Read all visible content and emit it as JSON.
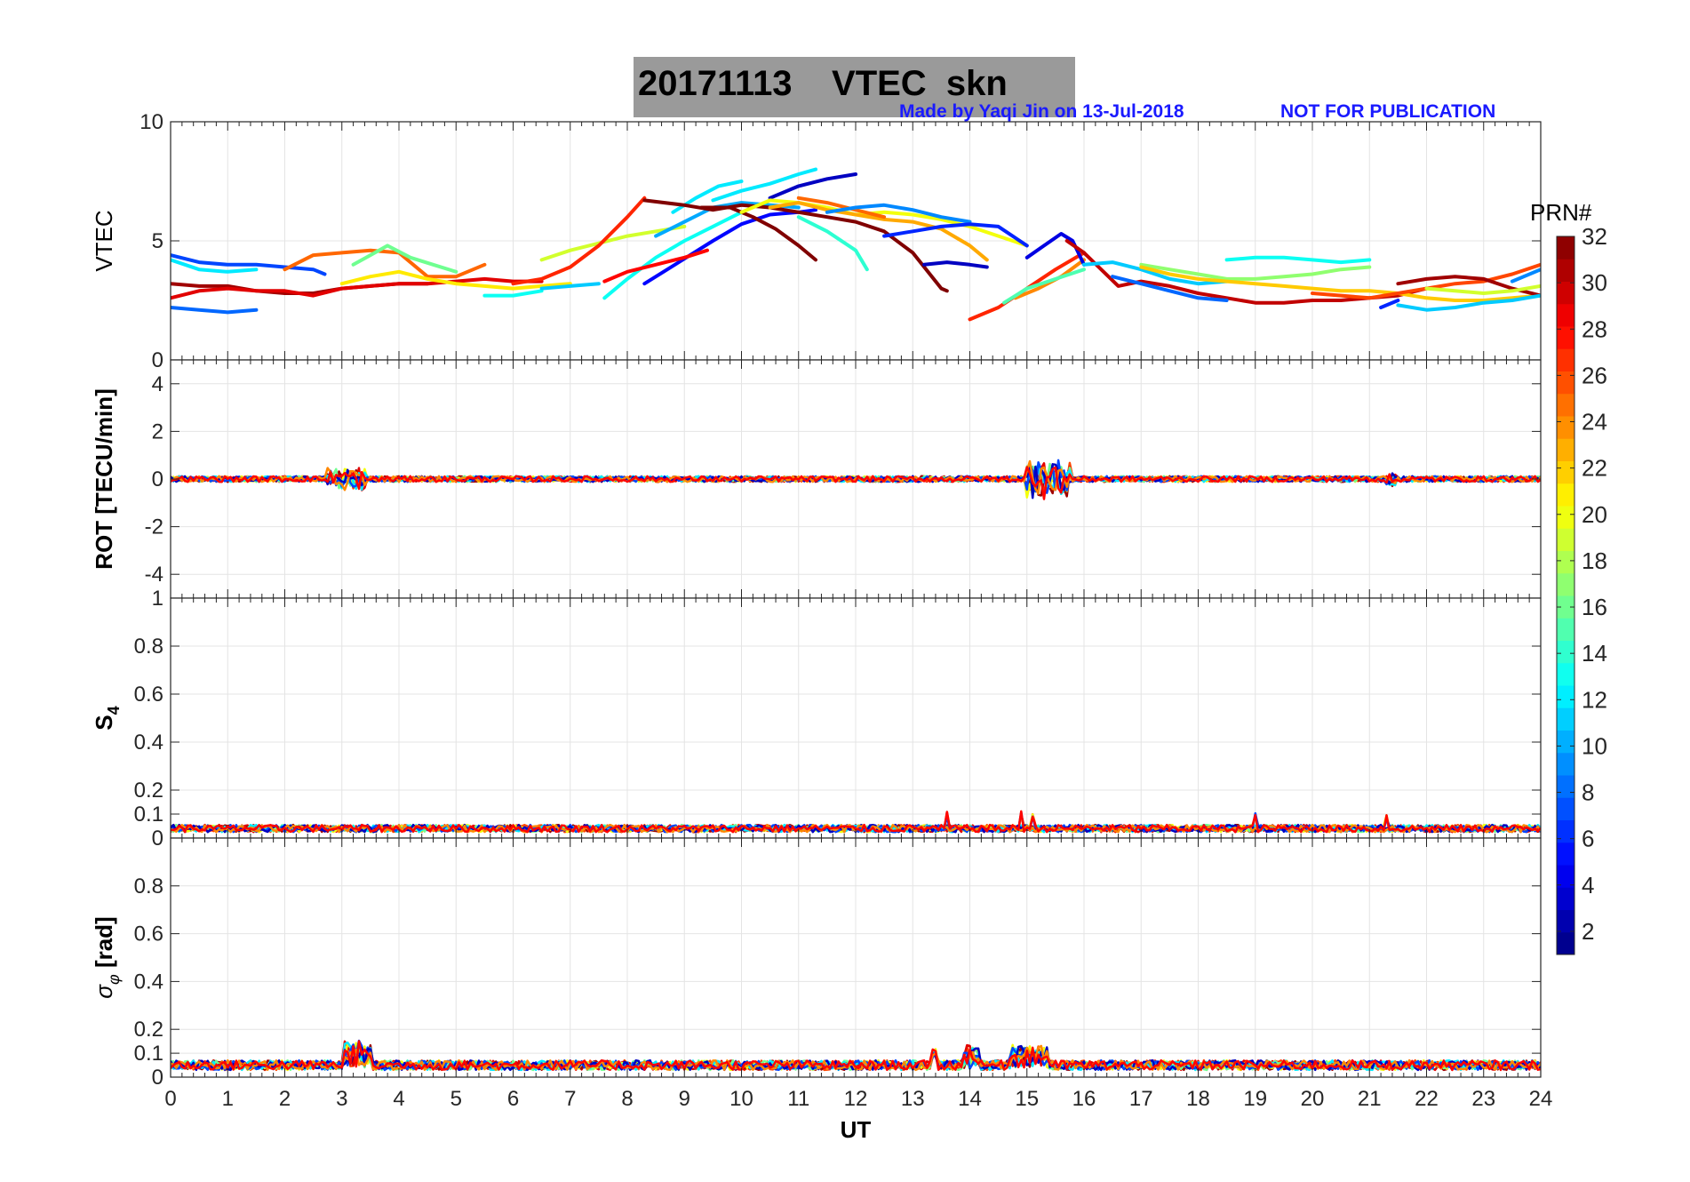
{
  "title": {
    "date": "20171113",
    "label": "VTEC  skn"
  },
  "credit": {
    "author": "Made by Yaqi Jin on 13-Jul-2018",
    "notice": "NOT FOR PUBLICATION"
  },
  "colorbar": {
    "label": "PRN#",
    "ticks": [
      2,
      4,
      6,
      8,
      10,
      12,
      14,
      16,
      18,
      20,
      22,
      24,
      26,
      28,
      30,
      32
    ],
    "range": [
      1,
      32
    ],
    "colormap": "jet"
  },
  "chart_data": [
    {
      "type": "line",
      "panel": "vtec",
      "ylabel": "VTEC",
      "ylim": [
        0,
        10
      ],
      "yticks": [
        0,
        5,
        10
      ],
      "xlim": [
        0,
        24
      ],
      "grid": true,
      "series": [
        {
          "prn": 7,
          "x": [
            0,
            0.5,
            1,
            1.5,
            2,
            2.5,
            2.7
          ],
          "y": [
            4.4,
            4.1,
            4.0,
            4.0,
            3.9,
            3.8,
            3.6
          ]
        },
        {
          "prn": 12,
          "x": [
            0,
            0.5,
            1,
            1.5
          ],
          "y": [
            4.2,
            3.8,
            3.7,
            3.8
          ]
        },
        {
          "prn": 8,
          "x": [
            0,
            0.5,
            1,
            1.5
          ],
          "y": [
            2.2,
            2.1,
            2.0,
            2.1
          ]
        },
        {
          "prn": 31,
          "x": [
            0,
            0.5,
            1,
            1.5,
            2,
            2.5,
            3,
            3.5,
            4,
            4.5
          ],
          "y": [
            3.2,
            3.1,
            3.1,
            2.9,
            2.8,
            2.8,
            3.0,
            3.1,
            3.2,
            3.2
          ]
        },
        {
          "prn": 29,
          "x": [
            0,
            0.5,
            1,
            1.5,
            2,
            2.5,
            3,
            3.5,
            4,
            4.5,
            5,
            5.5,
            6,
            6.5
          ],
          "y": [
            2.6,
            2.9,
            3.0,
            2.9,
            2.9,
            2.7,
            3.0,
            3.1,
            3.2,
            3.2,
            3.3,
            3.4,
            3.3,
            3.3
          ]
        },
        {
          "prn": 25,
          "x": [
            2,
            2.5,
            3,
            3.5,
            4,
            4.5,
            5,
            5.5
          ],
          "y": [
            3.8,
            4.4,
            4.5,
            4.6,
            4.5,
            3.5,
            3.5,
            4.0
          ]
        },
        {
          "prn": 16,
          "x": [
            3.2,
            3.5,
            3.8,
            4.2,
            4.6,
            5
          ],
          "y": [
            4.0,
            4.4,
            4.8,
            4.3,
            4.0,
            3.7
          ]
        },
        {
          "prn": 21,
          "x": [
            3,
            3.5,
            4,
            4.5,
            5,
            5.5,
            6,
            6.5,
            7
          ],
          "y": [
            3.2,
            3.5,
            3.7,
            3.4,
            3.2,
            3.1,
            3.0,
            3.1,
            3.2
          ]
        },
        {
          "prn": 19,
          "x": [
            6.5,
            7,
            7.5,
            8,
            8.5,
            9
          ],
          "y": [
            4.2,
            4.6,
            4.9,
            5.2,
            5.4,
            5.6
          ]
        },
        {
          "prn": 13,
          "x": [
            5.5,
            6,
            6.5
          ],
          "y": [
            2.7,
            2.7,
            2.9
          ]
        },
        {
          "prn": 11,
          "x": [
            6.5,
            7,
            7.5
          ],
          "y": [
            3.0,
            3.1,
            3.2
          ]
        },
        {
          "prn": 27,
          "x": [
            6,
            6.5,
            7,
            7.5,
            8,
            8.3
          ],
          "y": [
            3.2,
            3.4,
            3.9,
            4.8,
            6.0,
            6.8
          ]
        },
        {
          "prn": 13,
          "x": [
            7.6,
            8,
            8.5,
            9,
            9.5,
            10
          ],
          "y": [
            2.6,
            3.4,
            4.3,
            5.0,
            5.6,
            6.2
          ]
        },
        {
          "prn": 5,
          "x": [
            8.3,
            8.7,
            9.1,
            9.5,
            10,
            10.5,
            11,
            11.3
          ],
          "y": [
            3.2,
            3.8,
            4.4,
            5.0,
            5.7,
            6.1,
            6.2,
            6.3
          ]
        },
        {
          "prn": 10,
          "x": [
            8.5,
            9,
            9.5,
            10,
            10.5,
            11
          ],
          "y": [
            5.2,
            5.8,
            6.4,
            6.6,
            6.5,
            6.4
          ]
        },
        {
          "prn": 12,
          "x": [
            8.8,
            9.2,
            9.6,
            10
          ],
          "y": [
            6.2,
            6.8,
            7.3,
            7.5
          ]
        },
        {
          "prn": 28,
          "x": [
            7.6,
            8,
            8.5,
            9,
            9.4
          ],
          "y": [
            3.3,
            3.7,
            4.0,
            4.3,
            4.6
          ]
        },
        {
          "prn": 32,
          "x": [
            8.3,
            9,
            9.5,
            10,
            10.5,
            11,
            11.5,
            12,
            12.5,
            13,
            13.5,
            13.6
          ],
          "y": [
            6.7,
            6.5,
            6.3,
            6.5,
            6.4,
            6.2,
            6.0,
            5.8,
            5.4,
            4.5,
            3.0,
            2.9
          ]
        },
        {
          "prn": 32,
          "x": [
            9.3,
            9.8,
            10.2,
            10.6,
            11,
            11.3
          ],
          "y": [
            6.4,
            6.4,
            6.0,
            5.5,
            4.8,
            4.2
          ]
        },
        {
          "prn": 12,
          "x": [
            9.5,
            10,
            10.5,
            11,
            11.3
          ],
          "y": [
            6.7,
            7.1,
            7.4,
            7.8,
            8.0
          ]
        },
        {
          "prn": 3,
          "x": [
            10.5,
            11,
            11.5,
            12
          ],
          "y": [
            6.8,
            7.3,
            7.6,
            7.8
          ]
        },
        {
          "prn": 20,
          "x": [
            10,
            10.5,
            11,
            11.5,
            12,
            12.5,
            13,
            13.5,
            14,
            14.5,
            15
          ],
          "y": [
            6.2,
            6.7,
            6.6,
            6.4,
            6.1,
            6.2,
            6.1,
            5.9,
            5.6,
            5.2,
            4.8
          ]
        },
        {
          "prn": 23,
          "x": [
            10.5,
            11,
            11.5,
            12,
            12.5,
            13,
            13.5,
            14,
            14.3
          ],
          "y": [
            6.4,
            6.6,
            6.3,
            6.1,
            5.9,
            5.8,
            5.5,
            4.8,
            4.2
          ]
        },
        {
          "prn": 25,
          "x": [
            11,
            11.5,
            12,
            12.5
          ],
          "y": [
            6.8,
            6.6,
            6.3,
            6.0
          ]
        },
        {
          "prn": 14,
          "x": [
            11,
            11.5,
            12,
            12.2
          ],
          "y": [
            6.0,
            5.4,
            4.6,
            3.8
          ]
        },
        {
          "prn": 9,
          "x": [
            11.5,
            12,
            12.5,
            13,
            13.5,
            14
          ],
          "y": [
            6.2,
            6.4,
            6.5,
            6.3,
            6.0,
            5.8
          ]
        },
        {
          "prn": 6,
          "x": [
            12.5,
            13,
            13.5,
            14,
            14.5,
            15
          ],
          "y": [
            5.2,
            5.4,
            5.6,
            5.7,
            5.6,
            4.8
          ]
        },
        {
          "prn": 3,
          "x": [
            13.2,
            13.6,
            14,
            14.3
          ],
          "y": [
            4.0,
            4.1,
            4.0,
            3.9
          ]
        },
        {
          "prn": 27,
          "x": [
            14,
            14.5,
            15,
            15.5,
            16
          ],
          "y": [
            1.7,
            2.2,
            3.0,
            3.8,
            4.5
          ]
        },
        {
          "prn": 24,
          "x": [
            14.8,
            15.2,
            15.6,
            16
          ],
          "y": [
            2.6,
            3.0,
            3.5,
            4.2
          ]
        },
        {
          "prn": 4,
          "x": [
            15,
            15.3,
            15.6,
            15.8,
            16
          ],
          "y": [
            4.3,
            4.8,
            5.3,
            5.0,
            4.0
          ]
        },
        {
          "prn": 15,
          "x": [
            14.6,
            15,
            15.5,
            16
          ],
          "y": [
            2.4,
            3.0,
            3.4,
            3.8
          ]
        },
        {
          "prn": 30,
          "x": [
            15.7,
            16,
            16.3,
            16.6,
            17,
            17.5,
            18,
            18.5,
            19,
            19.5,
            20,
            20.5,
            21,
            21.5,
            22
          ],
          "y": [
            5.0,
            4.5,
            3.8,
            3.1,
            3.3,
            3.1,
            2.8,
            2.6,
            2.4,
            2.4,
            2.5,
            2.5,
            2.6,
            2.7,
            3.0
          ]
        },
        {
          "prn": 11,
          "x": [
            16,
            16.5,
            17,
            17.5,
            18,
            18.5
          ],
          "y": [
            4.0,
            4.1,
            3.8,
            3.4,
            3.2,
            3.3
          ]
        },
        {
          "prn": 8,
          "x": [
            16.5,
            17,
            17.5,
            18,
            18.5
          ],
          "y": [
            3.5,
            3.2,
            2.9,
            2.6,
            2.5
          ]
        },
        {
          "prn": 17,
          "x": [
            17,
            17.5,
            18,
            18.5,
            19,
            19.5,
            20,
            20.5,
            21
          ],
          "y": [
            4.0,
            3.8,
            3.6,
            3.4,
            3.4,
            3.5,
            3.6,
            3.8,
            3.9
          ]
        },
        {
          "prn": 13,
          "x": [
            18.5,
            19,
            19.5,
            20,
            20.5,
            21
          ],
          "y": [
            4.2,
            4.3,
            4.3,
            4.2,
            4.1,
            4.2
          ]
        },
        {
          "prn": 22,
          "x": [
            17,
            17.5,
            18,
            18.5,
            19,
            19.5,
            20,
            20.5,
            21,
            21.5,
            22,
            22.5,
            23,
            23.5,
            24
          ],
          "y": [
            3.9,
            3.6,
            3.4,
            3.3,
            3.2,
            3.1,
            3.0,
            2.9,
            2.9,
            2.8,
            2.6,
            2.5,
            2.5,
            2.6,
            2.7
          ]
        },
        {
          "prn": 26,
          "x": [
            20,
            20.5,
            21,
            21.5,
            22,
            22.5,
            23,
            23.5,
            24
          ],
          "y": [
            2.8,
            2.7,
            2.6,
            2.8,
            3.0,
            3.2,
            3.3,
            3.6,
            4.0
          ]
        },
        {
          "prn": 31,
          "x": [
            21.5,
            22,
            22.5,
            23,
            23.5,
            24
          ],
          "y": [
            3.2,
            3.4,
            3.5,
            3.4,
            3.0,
            2.7
          ]
        },
        {
          "prn": 11,
          "x": [
            21.5,
            22,
            22.5,
            23,
            23.5,
            24
          ],
          "y": [
            2.3,
            2.1,
            2.2,
            2.4,
            2.5,
            2.7
          ]
        },
        {
          "prn": 6,
          "x": [
            21.2,
            21.5
          ],
          "y": [
            2.2,
            2.5
          ]
        },
        {
          "prn": 9,
          "x": [
            23.5,
            24
          ],
          "y": [
            3.3,
            3.8
          ]
        },
        {
          "prn": 19,
          "x": [
            22,
            22.5,
            23,
            23.5,
            24
          ],
          "y": [
            3.0,
            2.9,
            2.8,
            2.9,
            3.1
          ]
        }
      ]
    },
    {
      "type": "line",
      "panel": "rot",
      "ylabel": "ROT [TECU/min]",
      "ylim": [
        -5,
        5
      ],
      "yticks": [
        -4,
        -2,
        0,
        2,
        4
      ],
      "xlim": [
        0,
        24
      ],
      "grid": true,
      "baseline": 0,
      "noise_amplitude": 0.12,
      "bursts": [
        {
          "x": [
            2.7,
            3.4
          ],
          "amplitude": 0.5
        },
        {
          "x": [
            15.0,
            15.8
          ],
          "amplitude": 0.9
        },
        {
          "x": [
            21.3,
            21.5
          ],
          "amplitude": 0.3
        }
      ]
    },
    {
      "type": "line",
      "panel": "s4",
      "ylabel": "S4",
      "ylim": [
        0,
        1
      ],
      "yticks": [
        0,
        0.1,
        0.2,
        0.4,
        0.6,
        0.8,
        1
      ],
      "xlim": [
        0,
        24
      ],
      "grid": true,
      "baseline": 0.04,
      "noise_amplitude": 0.015,
      "spikes": [
        {
          "x": 13.6,
          "y": 0.1
        },
        {
          "x": 14.9,
          "y": 0.11
        },
        {
          "x": 15.1,
          "y": 0.09
        },
        {
          "x": 19,
          "y": 0.09
        },
        {
          "x": 21.3,
          "y": 0.09
        }
      ]
    },
    {
      "type": "line",
      "panel": "sigma_phi",
      "ylabel": "σφ [rad]",
      "ylim": [
        0,
        1
      ],
      "yticks": [
        0,
        0.1,
        0.2,
        0.4,
        0.6,
        0.8
      ],
      "xlim": [
        0,
        24
      ],
      "xticks": [
        0,
        1,
        2,
        3,
        4,
        5,
        6,
        7,
        8,
        9,
        10,
        11,
        12,
        13,
        14,
        15,
        16,
        17,
        18,
        19,
        20,
        21,
        22,
        23,
        24
      ],
      "xlabel": "UT",
      "grid": true,
      "baseline": 0.05,
      "noise_amplitude": 0.02,
      "bursts": [
        {
          "x": [
            3.0,
            3.5
          ],
          "y": 0.14
        },
        {
          "x": 13.4,
          "y": 0.1
        },
        {
          "x": [
            13.9,
            14.2
          ],
          "y": 0.12
        },
        {
          "x": [
            14.7,
            15.4
          ],
          "y": 0.12
        }
      ]
    }
  ]
}
